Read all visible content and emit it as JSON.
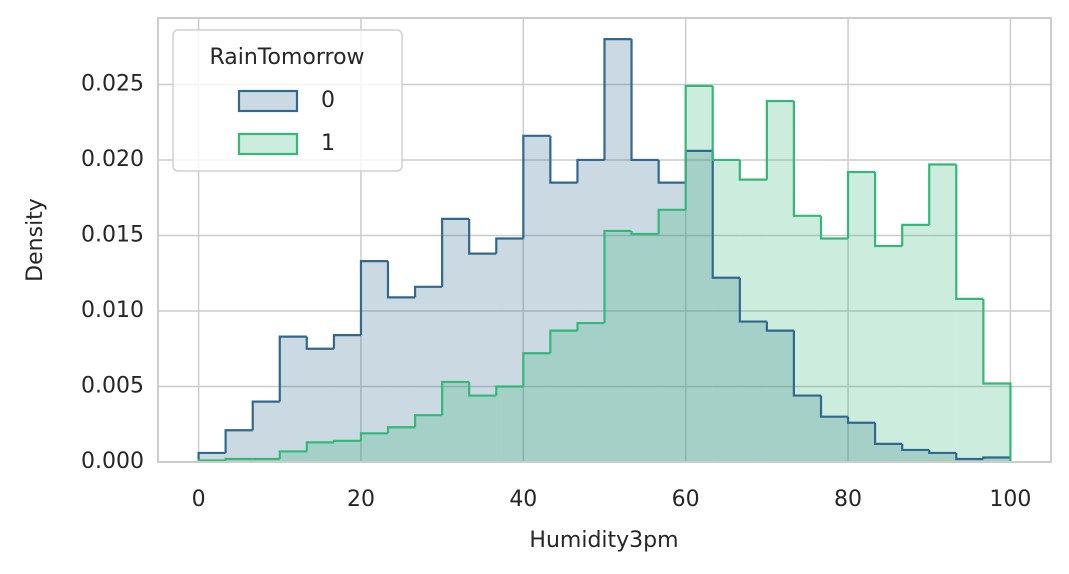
{
  "chart_data": {
    "type": "histogram",
    "x_label": "Humidity3pm",
    "y_label": "Density",
    "bins": [
      0,
      3.33,
      6.67,
      10,
      13.33,
      16.67,
      20,
      23.33,
      26.67,
      30,
      33.33,
      36.67,
      40,
      43.33,
      46.67,
      50,
      53.33,
      56.67,
      60,
      63.33,
      66.67,
      70,
      73.33,
      76.67,
      80,
      83.33,
      86.67,
      90,
      93.33,
      96.67,
      100
    ],
    "legend_title": "RainTomorrow",
    "legend": "upper left",
    "grid": true,
    "series": [
      {
        "name": "0",
        "color": "#31688e",
        "values": [
          0.0006,
          0.0021,
          0.004,
          0.0083,
          0.0075,
          0.0084,
          0.0133,
          0.0109,
          0.0116,
          0.0161,
          0.0138,
          0.0148,
          0.0216,
          0.0185,
          0.02,
          0.028,
          0.02,
          0.0185,
          0.0206,
          0.0122,
          0.0093,
          0.0087,
          0.0044,
          0.003,
          0.0026,
          0.0012,
          0.0008,
          0.0006,
          0.0002,
          0.0003
        ]
      },
      {
        "name": "1",
        "color": "#35b779",
        "values": [
          0.0001,
          0.0002,
          0.0002,
          0.0007,
          0.0013,
          0.0014,
          0.0019,
          0.0023,
          0.0031,
          0.0053,
          0.0044,
          0.005,
          0.0072,
          0.0087,
          0.0092,
          0.0153,
          0.0151,
          0.0167,
          0.0249,
          0.02,
          0.0187,
          0.0239,
          0.0163,
          0.0148,
          0.0192,
          0.0143,
          0.0157,
          0.0197,
          0.0108,
          0.0052
        ]
      }
    ],
    "xlim": [
      -5,
      105
    ],
    "xticks": [
      0,
      20,
      40,
      60,
      80,
      100
    ],
    "ylim": [
      0,
      0.0294
    ],
    "yticks": [
      {
        "value": 0,
        "label": "0.000"
      },
      {
        "value": 0.005,
        "label": "0.005"
      },
      {
        "value": 0.01,
        "label": "0.010"
      },
      {
        "value": 0.015,
        "label": "0.015"
      },
      {
        "value": 0.02,
        "label": "0.020"
      },
      {
        "value": 0.025,
        "label": "0.025"
      }
    ]
  }
}
